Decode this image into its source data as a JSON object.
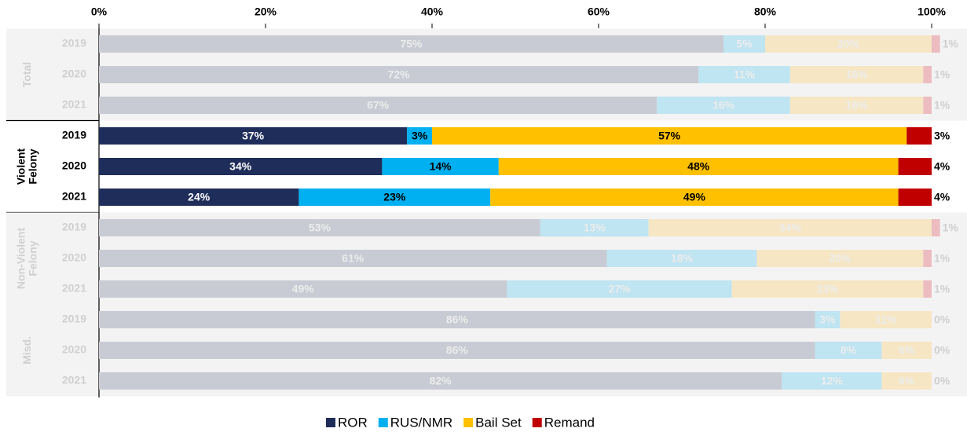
{
  "chart_data": {
    "type": "stacked-barh",
    "categories": [
      "2019",
      "2020",
      "2021",
      "2019",
      "2020",
      "2021",
      "2019",
      "2020",
      "2021",
      "2019",
      "2020",
      "2021"
    ],
    "group_labels": [
      [
        "Total"
      ],
      [
        "Violent",
        "Felony"
      ],
      [
        "Non-Violent",
        "Felony"
      ],
      [
        "Misd."
      ]
    ],
    "highlight_group": 1,
    "xlim": [
      0,
      100
    ],
    "xticks": [
      {
        "value": 0,
        "label": "0%"
      },
      {
        "value": 20,
        "label": "20%"
      },
      {
        "value": 40,
        "label": "40%"
      },
      {
        "value": 60,
        "label": "60%"
      },
      {
        "value": 80,
        "label": "80%"
      },
      {
        "value": 100,
        "label": "100%"
      }
    ],
    "series": [
      {
        "name": "ROR",
        "color": "#1f2d5a",
        "faded_color": "#c8cbd3",
        "values": [
          75,
          72,
          67,
          37,
          34,
          24,
          53,
          61,
          49,
          86,
          86,
          82
        ],
        "value_labels": [
          "75%",
          "72%",
          "67%",
          "37%",
          "34%",
          "24%",
          "53%",
          "61%",
          "49%",
          "86%",
          "86%",
          "82%"
        ]
      },
      {
        "name": "RUS/NMR",
        "color": "#00b0f0",
        "faded_color": "#bfe4f2",
        "values": [
          5,
          11,
          16,
          3,
          14,
          23,
          13,
          18,
          27,
          3,
          8,
          12
        ],
        "value_labels": [
          "5%",
          "11%",
          "16%",
          "3%",
          "14%",
          "23%",
          "13%",
          "18%",
          "27%",
          "3%",
          "8%",
          "12%"
        ]
      },
      {
        "name": "Bail Set",
        "color": "#ffc000",
        "faded_color": "#f6e6c4",
        "values": [
          20,
          16,
          16,
          57,
          48,
          49,
          34,
          20,
          23,
          11,
          6,
          6
        ],
        "value_labels": [
          "20%",
          "16%",
          "16%",
          "57%",
          "48%",
          "49%",
          "34%",
          "20%",
          "23%",
          "11%",
          "6%",
          "6%"
        ]
      },
      {
        "name": "Remand",
        "color": "#c00000",
        "faded_color": "#ecbcc0",
        "values": [
          1,
          1,
          1,
          3,
          4,
          4,
          1,
          1,
          1,
          0,
          0,
          0
        ],
        "value_labels": [
          "1%",
          "1%",
          "1%",
          "3%",
          "4%",
          "4%",
          "1%",
          "1%",
          "1%",
          "0%",
          "0%",
          "0%"
        ]
      }
    ]
  }
}
